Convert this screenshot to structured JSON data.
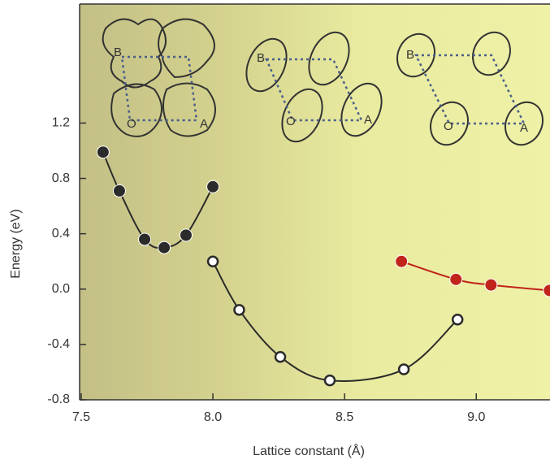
{
  "chart_data": {
    "type": "scatter",
    "xlabel": "Lattice constant (Å)",
    "ylabel": "Energy (eV)",
    "xlim": [
      7.494,
      9.28
    ],
    "ylim": [
      -0.8,
      2.06
    ],
    "xticks": [
      7.5,
      {
        "value": 8,
        "label": "8.0"
      },
      8.5,
      {
        "value": 9,
        "label": "9.0"
      }
    ],
    "yticks": [
      -0.8,
      -0.4,
      {
        "value": 0,
        "label": "0.0"
      },
      0.4,
      0.8,
      1.2
    ],
    "series": [
      {
        "color": "#2b2b2b",
        "marker": "filled",
        "x": [
          7.583,
          7.645,
          7.741,
          7.815,
          7.898,
          8.0
        ],
        "values": [
          0.99,
          0.71,
          0.36,
          0.3,
          0.39,
          0.74
        ]
      },
      {
        "color": "#2b2b2b",
        "marker": "open",
        "x": [
          8.0,
          8.1,
          8.256,
          8.444,
          8.725,
          8.929
        ],
        "values": [
          0.2,
          -0.15,
          -0.49,
          -0.66,
          -0.58,
          -0.22
        ]
      },
      {
        "color": "#c0241a",
        "marker": "filled",
        "x": [
          8.716,
          8.923,
          9.056,
          9.278
        ],
        "values": [
          0.2,
          0.07,
          0.03,
          -0.01
        ]
      }
    ],
    "insets": [
      {
        "labels": [
          "B",
          "O",
          "A"
        ]
      },
      {
        "labels": [
          "B",
          "O",
          "A"
        ]
      },
      {
        "labels": [
          "B",
          "O",
          "A"
        ]
      }
    ]
  }
}
